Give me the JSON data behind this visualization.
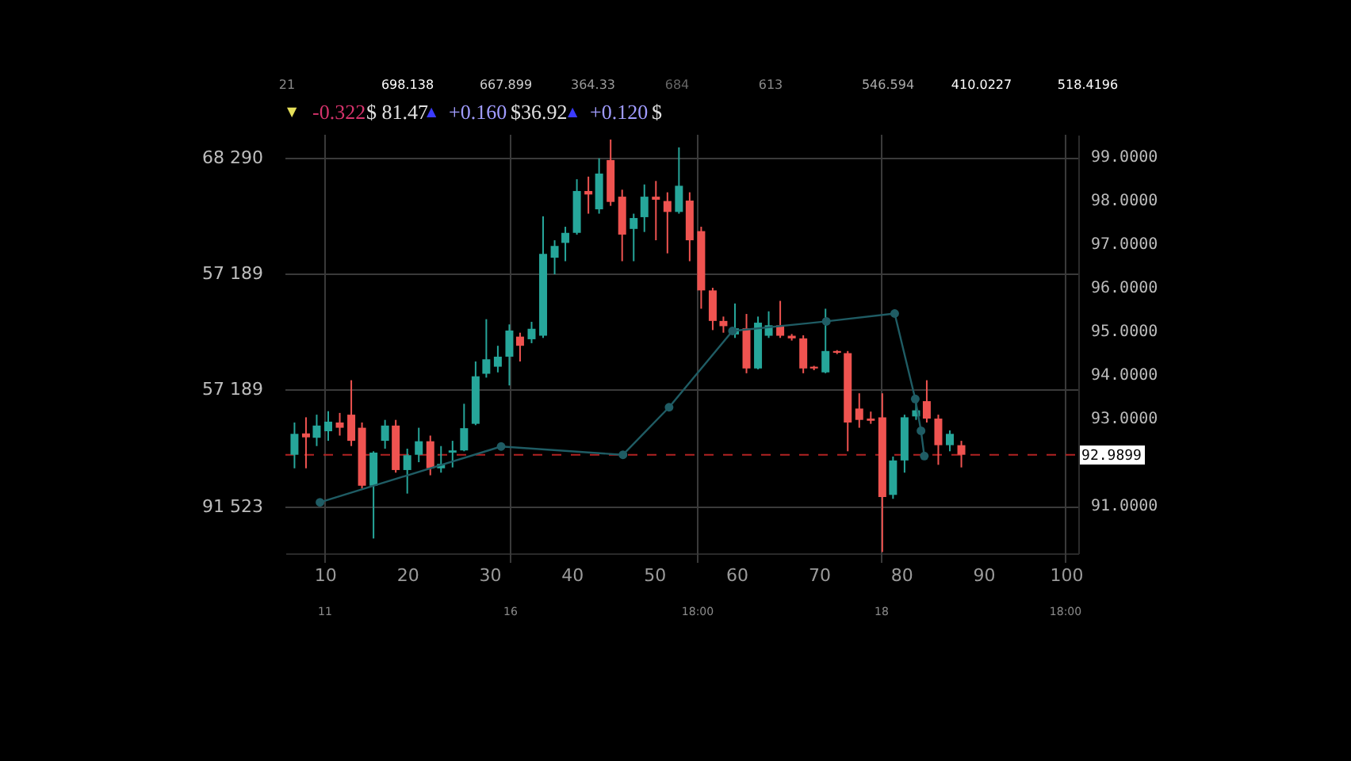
{
  "chart_data": {
    "type": "candlestick",
    "x": [
      6.3,
      7.7,
      9.0,
      10.4,
      11.8,
      13.2,
      14.5,
      15.9,
      17.3,
      18.6,
      20.0,
      21.4,
      22.8,
      24.1,
      25.5,
      26.9,
      28.3,
      29.6,
      31.0,
      32.4,
      33.7,
      35.1,
      36.5,
      37.9,
      39.2,
      40.6,
      42.0,
      43.3,
      44.7,
      46.1,
      47.5,
      48.8,
      50.2,
      51.6,
      53.0,
      54.3,
      55.7,
      57.1,
      58.4,
      59.8,
      61.2,
      62.6,
      63.9,
      65.3,
      66.7,
      68.1,
      69.4,
      70.8,
      72.2,
      73.5,
      74.9,
      76.3,
      77.7,
      79.0,
      80.4,
      81.8,
      83.1,
      84.5,
      85.9,
      87.3
    ],
    "ohlc": [
      [
        92.16,
        92.9,
        91.85,
        92.64
      ],
      [
        92.65,
        93.02,
        91.85,
        92.56
      ],
      [
        92.55,
        93.08,
        92.36,
        92.83
      ],
      [
        92.7,
        93.16,
        92.48,
        92.92
      ],
      [
        92.9,
        93.12,
        92.6,
        92.78
      ],
      [
        93.08,
        93.87,
        92.36,
        92.48
      ],
      [
        92.78,
        92.9,
        91.39,
        91.45
      ],
      [
        91.45,
        92.24,
        90.24,
        92.21
      ],
      [
        92.48,
        92.96,
        92.3,
        92.83
      ],
      [
        92.83,
        92.96,
        91.75,
        91.81
      ],
      [
        91.81,
        92.3,
        91.27,
        92.15
      ],
      [
        92.16,
        92.78,
        91.99,
        92.47
      ],
      [
        92.47,
        92.6,
        91.69,
        91.85
      ],
      [
        91.85,
        92.36,
        91.75,
        91.95
      ],
      [
        92.21,
        92.48,
        91.87,
        92.26
      ],
      [
        92.26,
        93.33,
        92.24,
        92.77
      ],
      [
        92.87,
        94.3,
        92.84,
        93.96
      ],
      [
        94.02,
        95.27,
        93.93,
        94.35
      ],
      [
        94.18,
        94.66,
        94.05,
        94.41
      ],
      [
        94.41,
        95.15,
        93.75,
        95.01
      ],
      [
        94.87,
        94.96,
        94.3,
        94.66
      ],
      [
        94.81,
        95.21,
        94.72,
        95.05
      ],
      [
        94.89,
        97.63,
        94.84,
        96.77
      ],
      [
        96.68,
        97.08,
        96.3,
        96.95
      ],
      [
        97.02,
        97.39,
        96.6,
        97.25
      ],
      [
        97.25,
        98.48,
        97.21,
        98.21
      ],
      [
        98.21,
        98.54,
        97.69,
        98.13
      ],
      [
        97.79,
        98.96,
        97.69,
        98.61
      ],
      [
        98.92,
        99.39,
        97.87,
        97.96
      ],
      [
        98.08,
        98.24,
        96.6,
        97.21
      ],
      [
        97.34,
        97.69,
        96.6,
        97.59
      ],
      [
        97.61,
        98.36,
        97.27,
        98.08
      ],
      [
        98.08,
        98.44,
        97.08,
        98.01
      ],
      [
        97.98,
        98.18,
        96.78,
        97.73
      ],
      [
        97.73,
        99.21,
        97.69,
        98.33
      ],
      [
        97.99,
        98.18,
        96.6,
        97.08
      ],
      [
        97.29,
        97.39,
        95.51,
        95.93
      ],
      [
        95.93,
        95.99,
        95.02,
        95.23
      ],
      [
        95.23,
        95.33,
        94.96,
        95.11
      ],
      [
        94.92,
        95.63,
        94.84,
        95.06
      ],
      [
        95.06,
        95.39,
        94.03,
        94.14
      ],
      [
        94.14,
        95.33,
        94.12,
        95.19
      ],
      [
        94.89,
        95.45,
        94.84,
        95.13
      ],
      [
        95.13,
        95.69,
        94.84,
        94.89
      ],
      [
        94.89,
        94.93,
        94.78,
        94.83
      ],
      [
        94.83,
        94.9,
        94.03,
        94.14
      ],
      [
        94.18,
        94.2,
        94.1,
        94.14
      ],
      [
        94.05,
        95.51,
        94.03,
        94.54
      ],
      [
        94.54,
        94.56,
        94.47,
        94.5
      ],
      [
        94.49,
        94.54,
        92.24,
        92.9
      ],
      [
        93.22,
        93.57,
        92.78,
        92.96
      ],
      [
        92.99,
        93.15,
        92.87,
        92.94
      ],
      [
        93.02,
        93.57,
        89.93,
        91.19
      ],
      [
        91.24,
        92.12,
        91.15,
        92.03
      ],
      [
        92.03,
        93.08,
        91.75,
        93.02
      ],
      [
        93.04,
        93.51,
        92.96,
        93.18
      ],
      [
        93.39,
        93.87,
        92.9,
        92.99
      ],
      [
        92.99,
        93.08,
        91.93,
        92.38
      ],
      [
        92.38,
        92.72,
        92.24,
        92.64
      ],
      [
        92.38,
        92.48,
        91.87,
        92.16
      ]
    ],
    "colors": [
      "#26a69a",
      "#ef5350",
      "#26a69a",
      "#26a69a",
      "#ef5350",
      "#ef5350",
      "#ef5350",
      "#26a69a",
      "#26a69a",
      "#ef5350",
      "#26a69a",
      "#26a69a",
      "#ef5350",
      "#26a69a",
      "#26a69a",
      "#26a69a",
      "#26a69a",
      "#26a69a",
      "#26a69a",
      "#26a69a",
      "#ef5350",
      "#26a69a",
      "#26a69a",
      "#26a69a",
      "#26a69a",
      "#26a69a",
      "#ef5350",
      "#26a69a",
      "#ef5350",
      "#ef5350",
      "#26a69a",
      "#26a69a",
      "#ef5350",
      "#ef5350",
      "#26a69a",
      "#ef5350",
      "#ef5350",
      "#ef5350",
      "#ef5350",
      "#26a69a",
      "#ef5350",
      "#26a69a",
      "#26a69a",
      "#ef5350",
      "#ef5350",
      "#ef5350",
      "#ef5350",
      "#26a69a",
      "#ef5350",
      "#ef5350",
      "#ef5350",
      "#ef5350",
      "#ef5350",
      "#26a69a",
      "#26a69a",
      "#26a69a",
      "#ef5350",
      "#ef5350",
      "#26a69a",
      "#ef5350"
    ],
    "series": [
      {
        "type": "line",
        "color": "#1f5c64",
        "marker": "circle",
        "x": [
          9.4,
          31.4,
          46.2,
          51.8,
          59.5,
          70.9,
          79.2,
          81.7,
          82.4,
          82.8
        ],
        "values": [
          91.07,
          92.35,
          92.16,
          93.25,
          95.0,
          95.22,
          95.4,
          93.44,
          92.71,
          92.13
        ]
      }
    ],
    "xlim": [
      5.2,
      101.5
    ],
    "xticks": [
      10,
      20,
      30,
      40,
      50,
      60,
      70,
      80,
      90,
      100
    ],
    "ylim": [
      89.9,
      99.5
    ],
    "yticks": [
      {
        "value": 91,
        "label": "91.0000"
      },
      {
        "value": 93,
        "label": "93.0000"
      },
      {
        "value": 94,
        "label": "94.0000"
      },
      {
        "value": 95,
        "label": "95.0000"
      },
      {
        "value": 96,
        "label": "96.0000"
      },
      {
        "value": 97,
        "label": "97.0000"
      },
      {
        "value": 98,
        "label": "98.0000"
      },
      {
        "value": 99,
        "label": "99.0000"
      }
    ],
    "ref_lines": [
      {
        "axis": "y",
        "value": 92.16,
        "color": "#b22222",
        "line_style": "dashed"
      }
    ],
    "annotations": [
      "21",
      "698.138",
      "667.899",
      "364.33",
      "684",
      "613",
      "546.594",
      "410.0227",
      "518.4196",
      "▼",
      "-0.322",
      "$ 81.47",
      "▲",
      "+0.160",
      "$36.92",
      "▲",
      "+0.120",
      "$",
      "68 290",
      "57 189",
      "57 189",
      "91 523",
      "11",
      "16",
      "18:00",
      "18",
      "18:00",
      "92.9899"
    ],
    "grid": true
  }
}
